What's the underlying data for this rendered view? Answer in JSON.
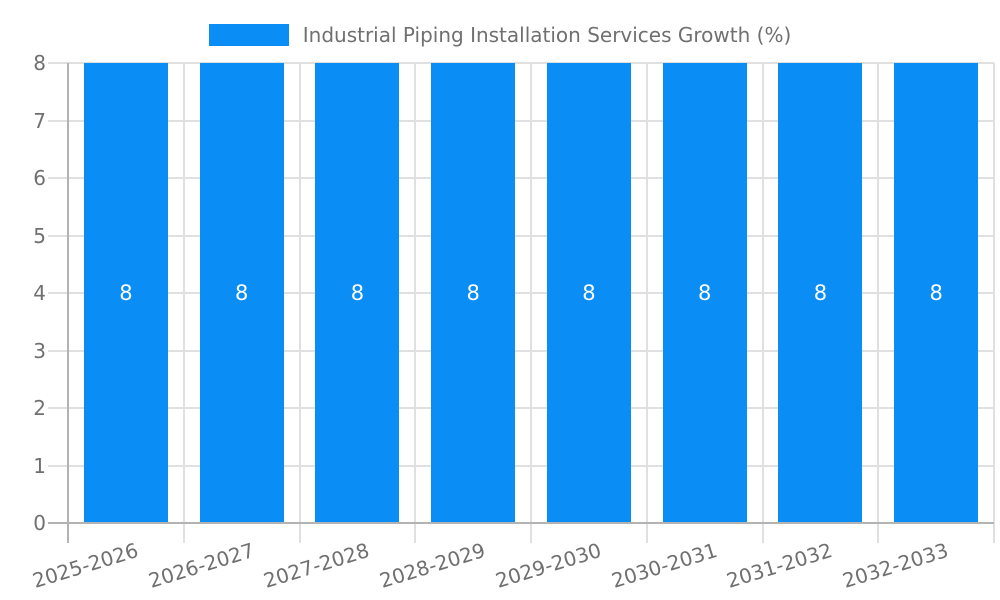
{
  "chart_data": {
    "type": "bar",
    "title": "Industrial Piping Installation Services Growth (%)",
    "categories": [
      "2025-2026",
      "2026-2027",
      "2027-2028",
      "2028-2029",
      "2029-2030",
      "2030-2031",
      "2031-2032",
      "2032-2033"
    ],
    "values": [
      8,
      8,
      8,
      8,
      8,
      8,
      8,
      8
    ],
    "bar_value_labels": [
      "8",
      "8",
      "8",
      "8",
      "8",
      "8",
      "8",
      "8"
    ],
    "y_ticks": [
      0,
      1,
      2,
      3,
      4,
      5,
      6,
      7,
      8
    ],
    "ylim": [
      0,
      8
    ],
    "xlabel": "",
    "ylabel": "",
    "grid": true,
    "legend_position": "top-center",
    "colors": {
      "bar": "#0a8df5",
      "grid": "#e0e0e0",
      "axis": "#b3b3b3",
      "tick_text": "#707070",
      "legend_text": "#707070",
      "bar_label_text": "#ffffff",
      "background": "#ffffff"
    }
  }
}
